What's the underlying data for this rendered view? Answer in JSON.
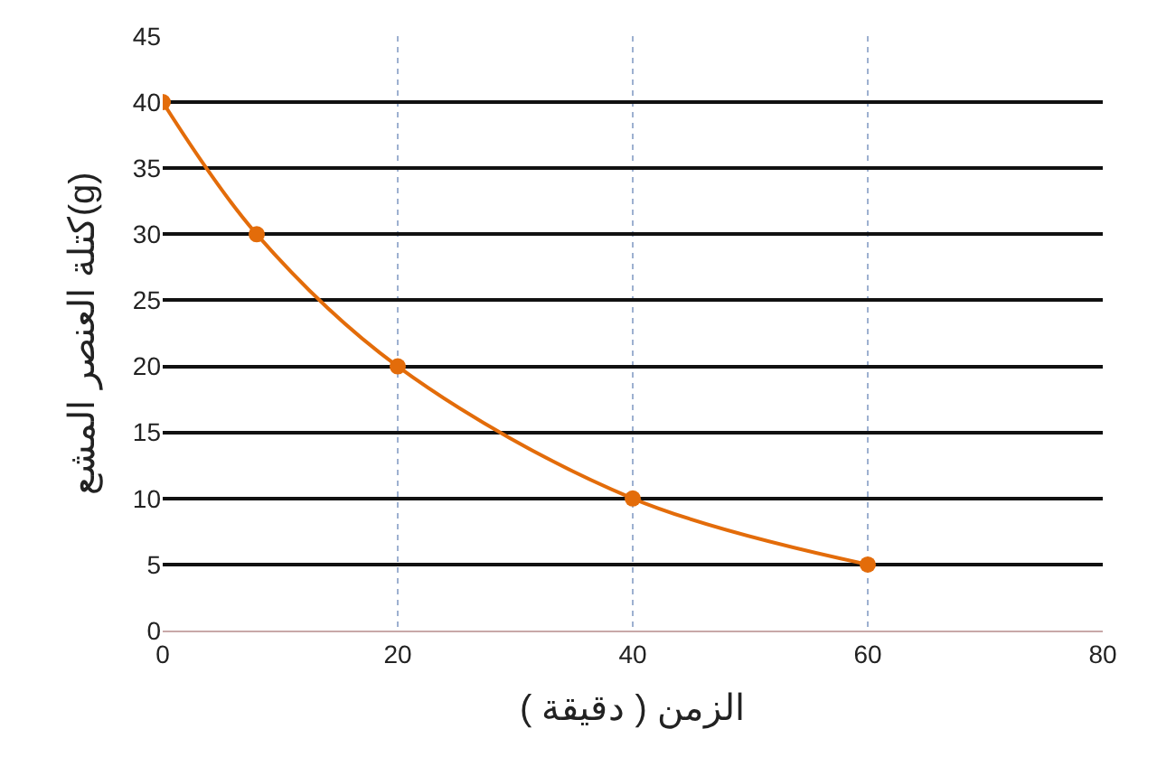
{
  "chart_data": {
    "type": "line",
    "xlabel": "الزمن ( دقيقة )",
    "ylabel": "كتلة العنصر المشع(g)",
    "x": [
      0,
      8,
      20,
      40,
      60
    ],
    "series": [
      {
        "color": "#e36c0a",
        "values": [
          40,
          30,
          20,
          10,
          5
        ]
      }
    ],
    "xlim": [
      0,
      80
    ],
    "xticks": [
      0,
      20,
      40,
      60,
      80
    ],
    "ylim": [
      0,
      45
    ],
    "yticks": [
      0,
      5,
      10,
      15,
      20,
      25,
      30,
      35,
      40,
      45
    ],
    "grid": true,
    "marker": "circle",
    "line_style": "solid",
    "legend": false
  }
}
